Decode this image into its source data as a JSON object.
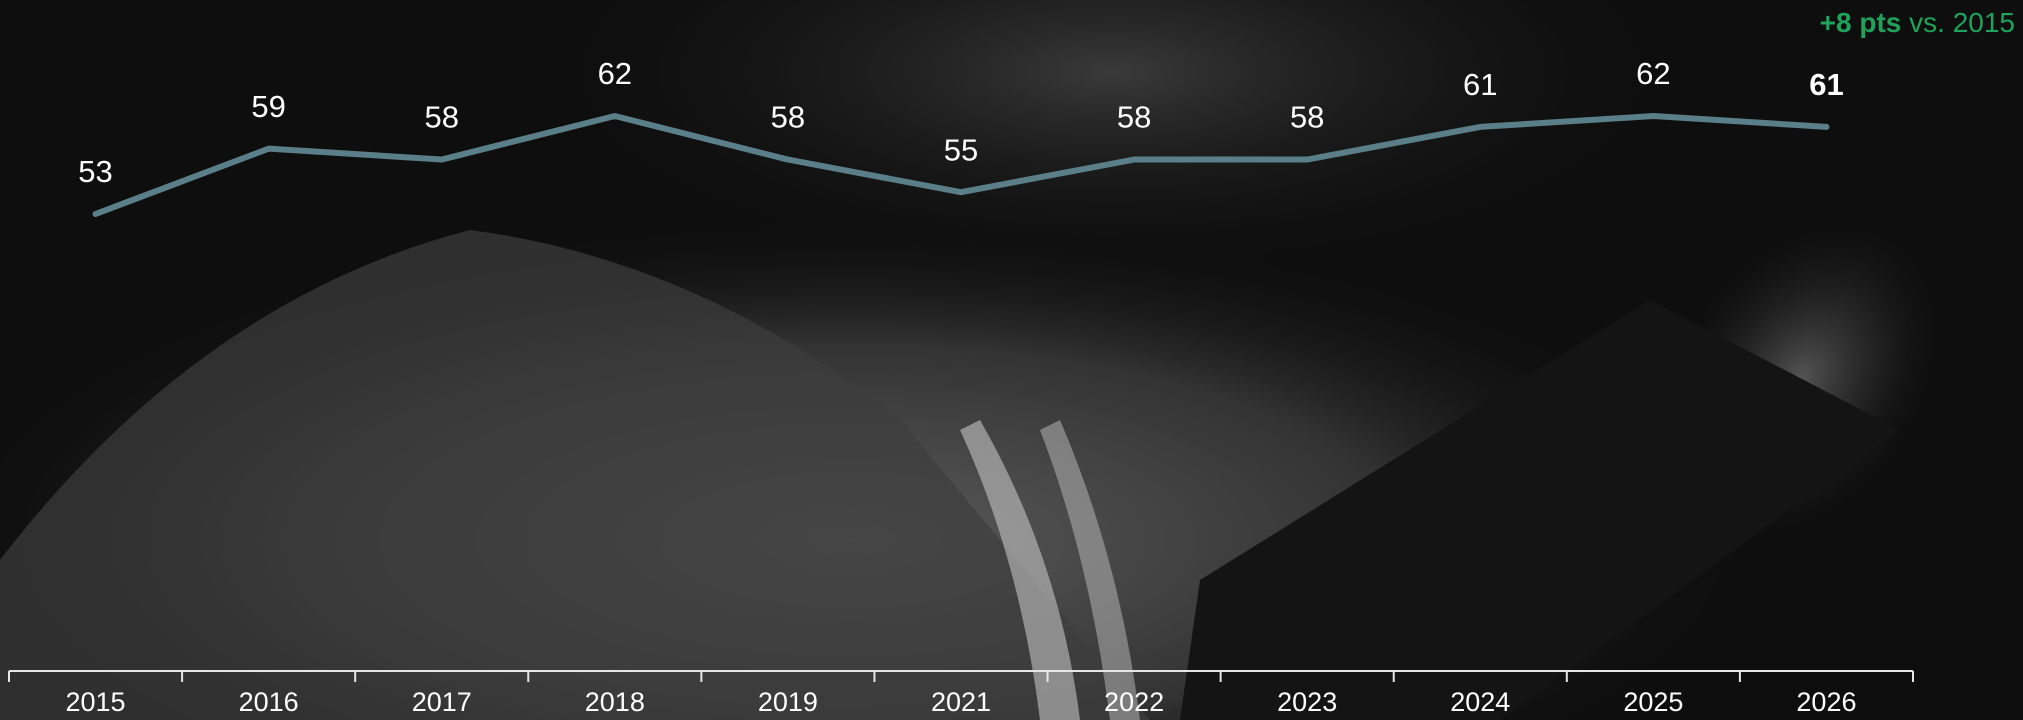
{
  "chart_data": {
    "type": "line",
    "categories": [
      "2015",
      "2016",
      "2017",
      "2018",
      "2019",
      "2021",
      "2022",
      "2023",
      "2024",
      "2025",
      "2026"
    ],
    "values": [
      53,
      59,
      58,
      62,
      58,
      55,
      58,
      58,
      61,
      62,
      61
    ],
    "color": "#5a7f89",
    "annotation": {
      "highlight": "+8 pts",
      "text": "vs. 2015",
      "color": "#1fa35a"
    }
  }
}
